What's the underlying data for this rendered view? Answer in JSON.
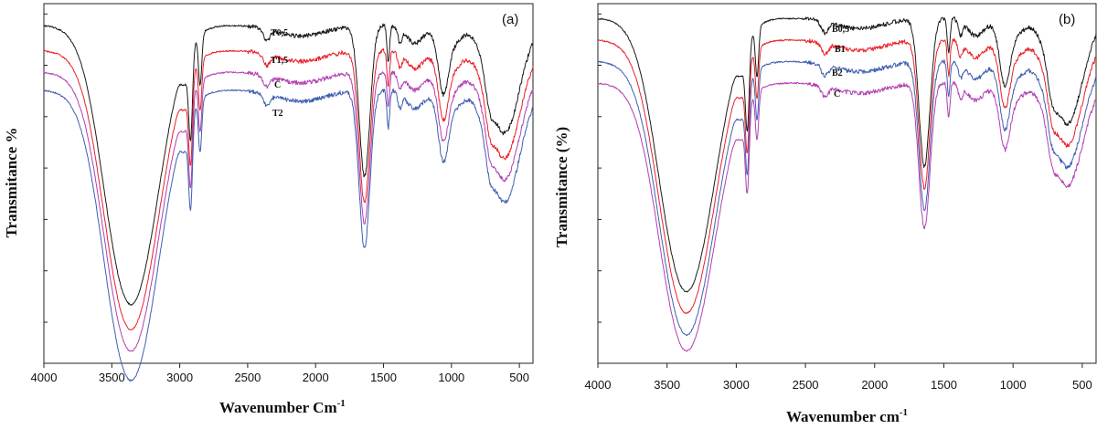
{
  "chart_data": [
    {
      "type": "line",
      "panel_label": "(a)",
      "xlabel": "Wavenumber Cm",
      "xlabel_sup": "-1",
      "ylabel": "Transmitance %",
      "xlim": [
        4000,
        400
      ],
      "x_reversed": true,
      "x_ticks": [
        "4000",
        "3500",
        "3000",
        "2500",
        "2000",
        "1500",
        "1000",
        "500"
      ],
      "y_ticks_labeled": false,
      "grid": false,
      "ylim": [
        0,
        100
      ],
      "series": [
        {
          "name": "T0,5",
          "color": "#1a1a1a",
          "offset": 94,
          "depth": 1.0
        },
        {
          "name": "T1,5",
          "color": "#e8212a",
          "offset": 87,
          "depth": 1.0
        },
        {
          "name": "C",
          "color": "#b23fb2",
          "offset": 81,
          "depth": 1.0
        },
        {
          "name": "T2",
          "color": "#3f5fb0",
          "offset": 76,
          "depth": 1.04
        }
      ]
    },
    {
      "type": "line",
      "panel_label": "(b)",
      "xlabel": "Wavenumber cm",
      "xlabel_sup": "-1",
      "ylabel": "Transmitance (%)",
      "xlim": [
        4000,
        400
      ],
      "x_reversed": true,
      "x_ticks": [
        "4000",
        "3500",
        "3000",
        "2500",
        "2000",
        "1500",
        "1000",
        "500"
      ],
      "y_ticks_labeled": false,
      "grid": false,
      "ylim": [
        0,
        100
      ],
      "series": [
        {
          "name": "B0,5",
          "color": "#1a1a1a",
          "offset": 96,
          "depth": 0.98
        },
        {
          "name": "B1",
          "color": "#e8212a",
          "offset": 90,
          "depth": 0.98
        },
        {
          "name": "B2",
          "color": "#3f5fb0",
          "offset": 84,
          "depth": 0.98
        },
        {
          "name": "C",
          "color": "#b23fb2",
          "offset": 78,
          "depth": 0.96
        }
      ]
    }
  ]
}
